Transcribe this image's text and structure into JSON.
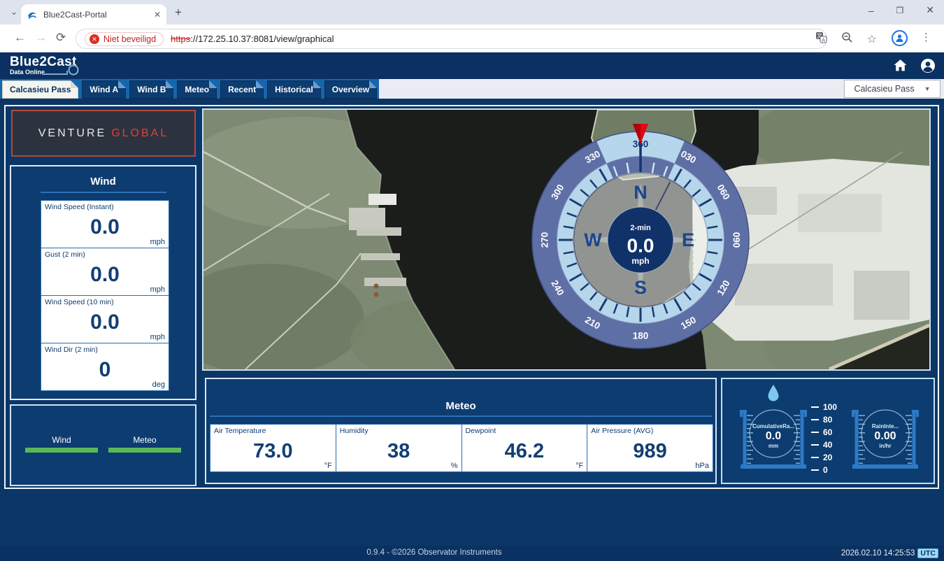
{
  "browser": {
    "tab_title": "Blue2Cast-Portal",
    "security_label": "Niet beveiligd",
    "url_protocol": "https",
    "url_rest": "://172.25.10.37:8081/view/graphical"
  },
  "icons": {
    "tab_search": "⌄",
    "new_tab": "+",
    "minimize": "–",
    "restore": "❐",
    "close_window": "✕",
    "close_tab": "✕",
    "back": "←",
    "forward": "→",
    "reload": "⟳",
    "star": "☆",
    "menu": "⋮",
    "caret": "▼",
    "warn": "✕"
  },
  "header": {
    "brand": "Blue2Cast",
    "brand_sub": "Data Online"
  },
  "nav": {
    "tabs": [
      {
        "label": "Calcasieu Pass",
        "active": true
      },
      {
        "label": "Wind A",
        "active": false
      },
      {
        "label": "Wind B",
        "active": false
      },
      {
        "label": "Meteo",
        "active": false
      },
      {
        "label": "Recent",
        "active": false
      },
      {
        "label": "Historical",
        "active": false
      },
      {
        "label": "Overview",
        "active": false
      }
    ],
    "station_select": "Calcasieu Pass"
  },
  "branding": {
    "word1": "VENTURE",
    "word2": "GLOBAL"
  },
  "wind_panel": {
    "title": "Wind",
    "cards": [
      {
        "label": "Wind Speed (Instant)",
        "value": "0.0",
        "unit": "mph"
      },
      {
        "label": "Gust (2 min)",
        "value": "0.0",
        "unit": "mph"
      },
      {
        "label": "Wind Speed (10 min)",
        "value": "0.0",
        "unit": "mph"
      },
      {
        "label": "Wind Dir (2 min)",
        "value": "0",
        "unit": "deg"
      }
    ]
  },
  "status_panel": {
    "items": [
      {
        "label": "Wind"
      },
      {
        "label": "Meteo"
      }
    ]
  },
  "compass": {
    "degree_labels": [
      "360",
      "030",
      "060",
      "090",
      "120",
      "150",
      "180",
      "210",
      "240",
      "270",
      "300",
      "330"
    ],
    "cardinals": {
      "n": "N",
      "e": "E",
      "s": "S",
      "w": "W"
    },
    "center": {
      "top": "2-min",
      "value": "0.0",
      "unit": "mph"
    },
    "heading_deg": 0,
    "colors": {
      "ring": "#5e6fa5",
      "band": "#b6d6ec",
      "navy": "#16356e",
      "arrow": "#e30613"
    }
  },
  "meteo_panel": {
    "title": "Meteo",
    "cards": [
      {
        "label": "Air Temperature",
        "value": "73.0",
        "unit": "°F"
      },
      {
        "label": "Humidity",
        "value": "38",
        "unit": "%"
      },
      {
        "label": "Dewpoint",
        "value": "46.2",
        "unit": "°F"
      },
      {
        "label": "Air Pressure (AVG)",
        "value": "989",
        "unit": "hPa"
      }
    ]
  },
  "rain_panel": {
    "gauges": [
      {
        "label": "CumulativeRa...",
        "value": "0.0",
        "unit": "mm"
      },
      {
        "label": "RainInte...",
        "value": "0.00",
        "unit": "in/hr"
      }
    ],
    "scale": [
      "100",
      "80",
      "60",
      "40",
      "20",
      "0"
    ]
  },
  "footer": {
    "version": "0.9.4 - ©2026 Observator Instruments",
    "timestamp": "2026.02.10 14:25:53",
    "timezone": "UTC"
  },
  "colors": {
    "page_navy": "#0b3766",
    "panel_navy": "#0d3c70",
    "accent_blue": "#1766ad",
    "green_ok": "#58b957",
    "brand_red": "#e04030",
    "gauge_blue": "#2d7ac6"
  }
}
